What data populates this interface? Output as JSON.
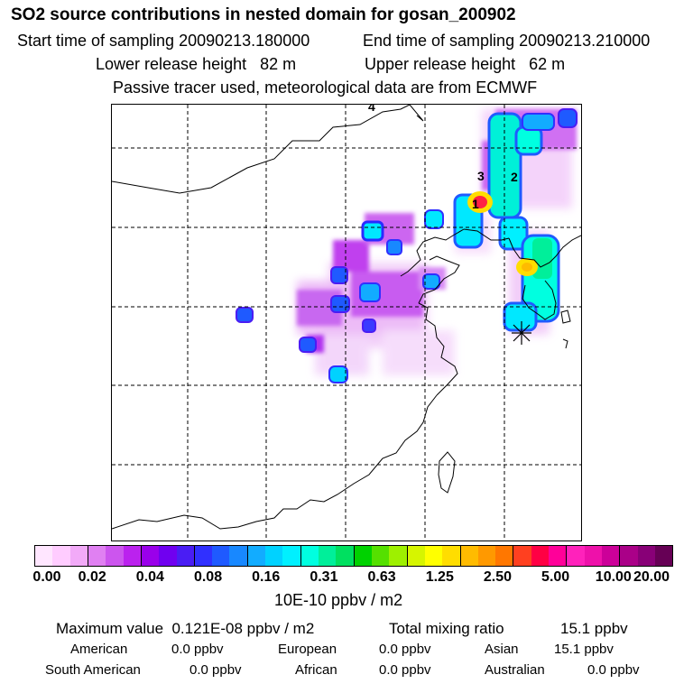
{
  "header": {
    "title": "SO2 source contributions in nested domain for gosan_200902",
    "start_label": "Start time of sampling 20090213.180000",
    "end_label": "End time of sampling 20090213.210000",
    "lower_label": "Lower release height   82 m",
    "upper_label": "Upper release height   62 m",
    "tracer_note": "Passive tracer used, meteorological data are from ECMWF"
  },
  "map": {
    "markers": [
      "1",
      "2",
      "3",
      "4"
    ],
    "receptor_symbol": "gosan-receptor"
  },
  "colorbar": {
    "colors": [
      "#ffe6ff",
      "#ffccff",
      "#f2aaf8",
      "#e080f2",
      "#cc55ee",
      "#bb22ee",
      "#9a00ea",
      "#7000f0",
      "#4a1df4",
      "#3030ff",
      "#1f5aff",
      "#1888ff",
      "#12acff",
      "#00d2ff",
      "#00f0ff",
      "#00ffe0",
      "#00ef9a",
      "#00e060",
      "#00d200",
      "#55e000",
      "#9ef000",
      "#d6f500",
      "#ffff00",
      "#ffdd00",
      "#ffbb00",
      "#ff9900",
      "#ff7700",
      "#ff4020",
      "#ff0044",
      "#ff0099",
      "#ff22bb",
      "#ee11aa",
      "#cc0099",
      "#aa0088",
      "#880077",
      "#660055"
    ],
    "ticks": [
      "0.00",
      "0.02",
      "0.04",
      "0.08",
      "0.16",
      "0.31",
      "0.63",
      "1.25",
      "2.50",
      "5.00",
      "10.00",
      "20.00"
    ],
    "unit": "10E-10 ppbv / m2"
  },
  "summary": {
    "max_label": "Maximum value  0.121E-08 ppbv / m2",
    "total_label": "Total mixing ratio",
    "total_value": "15.1 ppbv",
    "american_label": "American",
    "american_value": "0.0 ppbv",
    "european_label": "European",
    "european_value": "0.0 ppbv",
    "asian_label": "Asian",
    "asian_value": "15.1 ppbv",
    "south_american_label": "South American",
    "south_american_value": "0.0 ppbv",
    "african_label": "African",
    "african_value": "0.0 ppbv",
    "australian_label": "Australian",
    "australian_value": "0.0 ppbv"
  },
  "colors": {
    "frame": "#000000",
    "background": "#ffffff"
  }
}
